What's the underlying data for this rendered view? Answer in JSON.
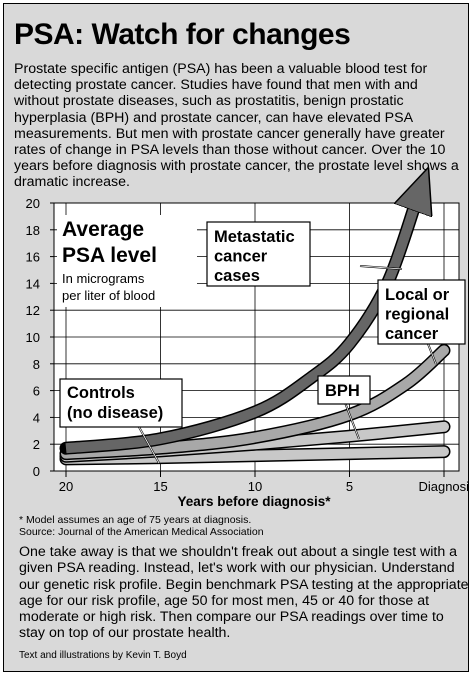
{
  "title": "PSA: Watch for changes",
  "intro": "Prostate specific antigen (PSA) has been a valuable blood test for detecting prostate cancer. Studies have found that men with and without prostate diseases, such as prostatitis, benign prostatic hyperplasia (BPH) and prostate cancer, can have elevated PSA measurements. But men with prostate cancer generally have greater rates of change in PSA levels than those without cancer. Over the 10 years before diagnosis with prostate cancer, the prostate level shows a dramatic increase.",
  "chart_data": {
    "type": "line",
    "title_line1": "Average",
    "title_line2": "PSA level",
    "units_line1": "In micrograms",
    "units_line2": "per liter of blood",
    "xlabel": "Years before diagnosis*",
    "xticks": [
      "20",
      "15",
      "10",
      "5",
      "Diagnosis"
    ],
    "xtick_values": [
      20,
      15,
      10,
      5,
      0
    ],
    "yticks": [
      "0",
      "2",
      "4",
      "6",
      "8",
      "10",
      "12",
      "14",
      "16",
      "18",
      "20"
    ],
    "ylim": [
      0,
      20
    ],
    "xlim": [
      20,
      0
    ],
    "grid": true,
    "series": [
      {
        "name_lines": [
          "Controls",
          "(no disease)"
        ],
        "x": [
          20,
          15,
          10,
          5,
          0
        ],
        "y": [
          0.9,
          1.0,
          1.15,
          1.3,
          1.45
        ],
        "color": "#c8c8c8"
      },
      {
        "name_lines": [
          "BPH"
        ],
        "x": [
          20,
          15,
          10,
          5,
          0
        ],
        "y": [
          1.1,
          1.5,
          2.0,
          2.6,
          3.3
        ],
        "color": "#c8c8c8"
      },
      {
        "name_lines": [
          "Local or",
          "regional",
          "cancer"
        ],
        "x": [
          20,
          15,
          10,
          5,
          2,
          0
        ],
        "y": [
          1.3,
          1.7,
          2.5,
          4.2,
          6.5,
          9.0
        ],
        "color": "#a8a8a8"
      },
      {
        "name_lines": [
          "Metastatic",
          "cancer",
          "cases"
        ],
        "x": [
          20,
          15,
          10,
          7,
          5,
          3,
          1.5
        ],
        "y": [
          1.7,
          2.4,
          4.4,
          7.0,
          9.5,
          14.0,
          20.0
        ],
        "color": "#666666"
      }
    ]
  },
  "footnote_line1": "* Model assumes an age of 75 years at diagnosis.",
  "footnote_line2": "Source: Journal of the American Medical Association",
  "takeaway": "One take away is that we shouldn't freak out about a single test with a given PSA reading. Instead, let's work with our physician. Understand our genetic risk profile. Begin benchmark PSA testing at the appropriate age for our risk profile, age 50 for most men, 45 or 40 for those at moderate or high risk. Then compare our PSA readings over time to stay on top of our prostate health.",
  "credit": "Text and illustrations by Kevin T. Boyd"
}
